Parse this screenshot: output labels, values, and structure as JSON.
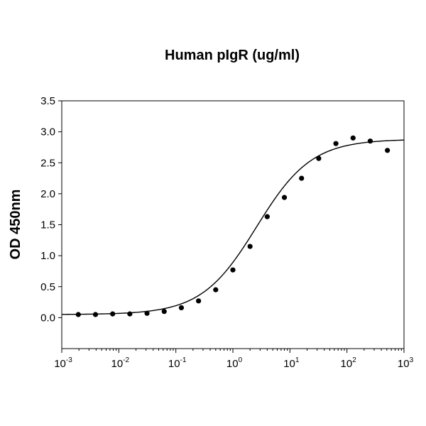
{
  "chart_data": {
    "type": "scatter",
    "title": "Human pIgR (ug/ml)",
    "xlabel": "",
    "ylabel": "OD 450nm",
    "xscale": "log",
    "xlim": [
      0.001,
      1000
    ],
    "ylim": [
      -0.5,
      3.5
    ],
    "x_ticks": [
      {
        "base": "10",
        "exp": "-3"
      },
      {
        "base": "10",
        "exp": "-2"
      },
      {
        "base": "10",
        "exp": "-1"
      },
      {
        "base": "10",
        "exp": "0"
      },
      {
        "base": "10",
        "exp": "1"
      },
      {
        "base": "10",
        "exp": "2"
      },
      {
        "base": "10",
        "exp": "3"
      }
    ],
    "y_ticks": [
      "0.0",
      "0.5",
      "1.0",
      "1.5",
      "2.0",
      "2.5",
      "3.0",
      "3.5"
    ],
    "grid": false,
    "legend": "none",
    "series": [
      {
        "marker": "circle",
        "color": "#000000",
        "x": [
          0.00195,
          0.0039,
          0.0078,
          0.0156,
          0.03125,
          0.0625,
          0.125,
          0.25,
          0.5,
          1,
          2,
          4,
          8,
          16,
          32,
          64,
          128,
          256,
          512
        ],
        "y": [
          0.05,
          0.05,
          0.06,
          0.06,
          0.07,
          0.1,
          0.16,
          0.27,
          0.45,
          0.77,
          1.15,
          1.63,
          1.94,
          2.25,
          2.57,
          2.81,
          2.9,
          2.85,
          2.7
        ]
      }
    ],
    "fit": {
      "type": "4PL",
      "color": "#000000",
      "bottom": 0.05,
      "top": 2.88,
      "ec50": 2.6,
      "hill": 0.9
    }
  }
}
